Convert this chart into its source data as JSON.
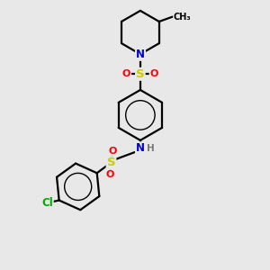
{
  "bg_color": "#e8e8e8",
  "atom_colors": {
    "C": "#000000",
    "N": "#0000cc",
    "S": "#cccc00",
    "O": "#ff0000",
    "Cl": "#00aa00",
    "H": "#777777"
  },
  "bond_color": "#000000",
  "bond_width": 1.6,
  "font_size_atom": 8.5,
  "figsize": [
    3.0,
    3.0
  ],
  "dpi": 100
}
